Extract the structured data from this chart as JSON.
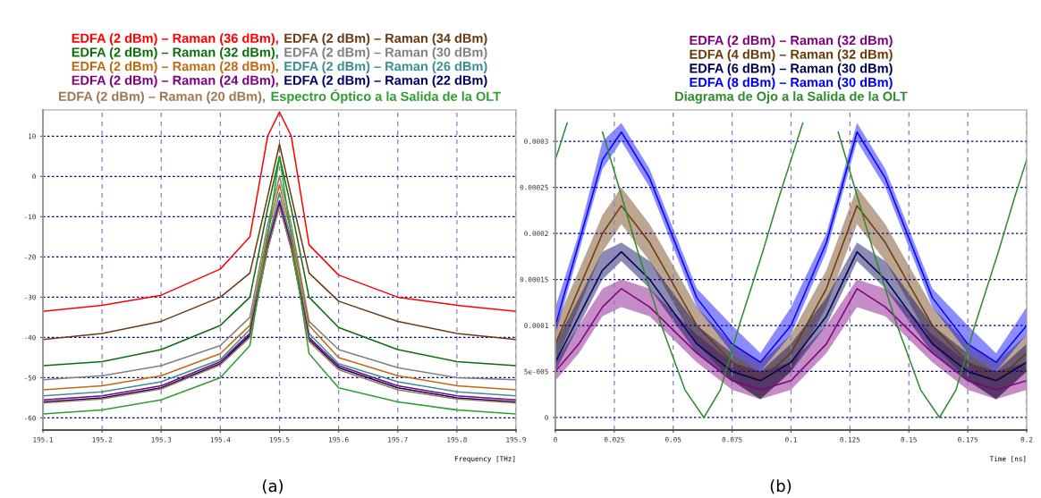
{
  "chart_data": [
    {
      "type": "line",
      "xlabel": "Frequency [THz]",
      "annotations": [
        "(a)"
      ],
      "legend": "top",
      "grid": true,
      "x": [
        195.1,
        195.2,
        195.3,
        195.4,
        195.45,
        195.48,
        195.5,
        195.52,
        195.55,
        195.6,
        195.7,
        195.8,
        195.9
      ],
      "xlim": [
        195.1,
        195.9
      ],
      "xticks": [
        195.1,
        195.2,
        195.3,
        195.4,
        195.5,
        195.6,
        195.7,
        195.8,
        195.9
      ],
      "ylim": [
        -63,
        16.5
      ],
      "yticks": [
        -60,
        -50,
        -40,
        -30,
        -20,
        -10,
        0,
        10
      ],
      "series": [
        {
          "name": "EDFA (2 dBm) – Raman (36 dBm),",
          "color": "#ff0000",
          "values": [
            -33.5,
            -32,
            -29.5,
            -23,
            -15,
            10,
            16,
            10,
            -17,
            -24.5,
            -30,
            -32,
            -33.5
          ]
        },
        {
          "name": "EDFA (2 dBm) – Raman (34 dBm)",
          "color": "#6b3a10",
          "values": [
            -40.5,
            -39,
            -36,
            -30,
            -24,
            -5,
            8,
            -5,
            -24,
            -31,
            -36,
            -39,
            -40.5
          ]
        },
        {
          "name": "EDFA (2 dBm) – Raman (32 dBm),",
          "color": "#0a6e0a",
          "values": [
            -47,
            -46,
            -43,
            -37,
            -30,
            -8,
            5,
            -8,
            -30,
            -37.5,
            -43,
            -46,
            -47
          ]
        },
        {
          "name": "EDFA (2 dBm) – Raman (30 dBm)",
          "color": "#808080",
          "values": [
            -50.5,
            -49.5,
            -47,
            -42,
            -35,
            -12,
            0,
            -12,
            -36,
            -43,
            -47.5,
            -50,
            -50.5
          ]
        },
        {
          "name": "EDFA (2 dBm) – Raman (28 dBm),",
          "color": "#c06a10",
          "values": [
            -53,
            -52,
            -49.5,
            -44,
            -37,
            -14,
            -2,
            -14,
            -37,
            -45,
            -49.5,
            -52,
            -53
          ]
        },
        {
          "name": "EDFA (2 dBm) – Raman (26 dBm)",
          "color": "#3a9090",
          "values": [
            -54.5,
            -53.5,
            -51,
            -45.5,
            -38,
            -16,
            -4,
            -16,
            -39,
            -46.5,
            -51,
            -53.5,
            -54.5
          ]
        },
        {
          "name": "EDFA (2 dBm) – Raman (24 dBm),",
          "color": "#800080",
          "values": [
            -55.5,
            -54.5,
            -52,
            -46,
            -39,
            -17,
            -6,
            -17,
            -40,
            -47,
            -52,
            -54.5,
            -55.5
          ]
        },
        {
          "name": "EDFA (2 dBm) – Raman (22 dBm)",
          "color": "#000066",
          "values": [
            -56,
            -55,
            -52.5,
            -46.5,
            -39.5,
            -18,
            -7,
            -18,
            -40.5,
            -47.5,
            -52.5,
            -55,
            -56
          ]
        },
        {
          "name": "EDFA (2 dBm) – Raman (20 dBm),",
          "color": "#a07850",
          "values": [
            -56.3,
            -55.3,
            -52.8,
            -46.8,
            -40,
            -18,
            -7.5,
            -18,
            -41,
            -48,
            -53,
            -55.3,
            -56.3
          ]
        },
        {
          "name": "Espectro Óptico a la Salida de la OLT",
          "color": "#2e9e2e",
          "values": [
            -59,
            -58,
            -55.5,
            -50,
            -42,
            -15,
            5,
            -15,
            -44,
            -52.5,
            -56,
            -58,
            -59
          ]
        }
      ]
    },
    {
      "type": "line",
      "xlabel": "Time [ns]",
      "annotations": [
        "(b)"
      ],
      "legend": "top",
      "grid": true,
      "x": [
        0,
        0.01,
        0.02,
        0.028,
        0.04,
        0.06,
        0.075,
        0.087,
        0.1,
        0.115,
        0.128,
        0.14,
        0.16,
        0.175,
        0.187,
        0.2
      ],
      "xlim": [
        0,
        0.2
      ],
      "xticks": [
        0,
        0.025,
        0.05,
        0.075,
        0.1,
        0.125,
        0.15,
        0.175,
        0.2
      ],
      "ylim": [
        -1.36e-05,
        0.000334
      ],
      "yticks": [
        0,
        {
          "value": 5e-05,
          "label": "5e-005"
        },
        0.0001,
        0.00015,
        0.0002,
        0.00025,
        0.0003
      ],
      "series": [
        {
          "name": "EDFA (2 dBm) – Raman (32 dBm)",
          "color": "#800080",
          "values": [
            5e-05,
            8e-05,
            0.00012,
            0.00014,
            0.00012,
            7e-05,
            4e-05,
            3e-05,
            4e-05,
            8e-05,
            0.00014,
            0.00012,
            7e-05,
            4e-05,
            3e-05,
            4e-05
          ],
          "lower": [
            4e-05,
            7e-05,
            0.00011,
            0.00012,
            0.00011,
            6e-05,
            3e-05,
            2e-05,
            3e-05,
            7e-05,
            0.00012,
            0.00011,
            6e-05,
            3e-05,
            2e-05,
            3e-05
          ],
          "upper": [
            6e-05,
            0.0001,
            0.00014,
            0.00015,
            0.00014,
            9e-05,
            6e-05,
            5e-05,
            6e-05,
            0.0001,
            0.00015,
            0.00014,
            9e-05,
            6e-05,
            5e-05,
            6e-05
          ]
        },
        {
          "name": "EDFA (4 dBm) – Raman (32 dBm)",
          "color": "#6b3a0a",
          "values": [
            8e-05,
            0.00014,
            0.0002,
            0.00023,
            0.00019,
            0.0001,
            6e-05,
            4e-05,
            7e-05,
            0.00014,
            0.00023,
            0.00019,
            0.0001,
            6e-05,
            4e-05,
            7e-05
          ],
          "lower": [
            6e-05,
            0.00012,
            0.00018,
            0.00021,
            0.00017,
            8e-05,
            4e-05,
            2e-05,
            5e-05,
            0.00012,
            0.00021,
            0.00017,
            8e-05,
            4e-05,
            2e-05,
            5e-05
          ],
          "upper": [
            0.0001,
            0.00016,
            0.00022,
            0.00025,
            0.00021,
            0.00012,
            8e-05,
            6e-05,
            9e-05,
            0.00016,
            0.00025,
            0.00021,
            0.00012,
            8e-05,
            6e-05,
            9e-05
          ]
        },
        {
          "name": "EDFA (6 dBm) – Raman (30 dBm)",
          "color": "#000055",
          "values": [
            6e-05,
            0.00011,
            0.00016,
            0.00018,
            0.00015,
            8e-05,
            5e-05,
            4e-05,
            6e-05,
            0.00011,
            0.00018,
            0.00015,
            8e-05,
            5e-05,
            4e-05,
            6e-05
          ],
          "lower": [
            5e-05,
            0.0001,
            0.00015,
            0.00017,
            0.00014,
            7e-05,
            4e-05,
            2e-05,
            5e-05,
            0.0001,
            0.00017,
            0.00014,
            7e-05,
            4e-05,
            2e-05,
            5e-05
          ],
          "upper": [
            8e-05,
            0.00013,
            0.00018,
            0.00019,
            0.00017,
            0.0001,
            7e-05,
            5e-05,
            8e-05,
            0.00013,
            0.00019,
            0.00017,
            0.0001,
            7e-05,
            5e-05,
            8e-05
          ]
        },
        {
          "name": "EDFA (8 dBm) – Raman (30 dBm)",
          "color": "#0000ff",
          "values": [
            0.0001,
            0.00019,
            0.00028,
            0.00031,
            0.00026,
            0.00013,
            8e-05,
            6e-05,
            0.0001,
            0.00019,
            0.00031,
            0.00026,
            0.00013,
            8e-05,
            6e-05,
            0.0001
          ],
          "lower": [
            9e-05,
            0.00018,
            0.00027,
            0.0003,
            0.00025,
            0.00012,
            7e-05,
            5e-05,
            9e-05,
            0.00018,
            0.0003,
            0.00025,
            0.00012,
            7e-05,
            5e-05,
            9e-05
          ],
          "upper": [
            0.00012,
            0.0002,
            0.0003,
            0.00032,
            0.00027,
            0.00014,
            0.0001,
            7e-05,
            0.00012,
            0.0002,
            0.00032,
            0.00027,
            0.00014,
            0.0001,
            7e-05,
            0.00012
          ]
        },
        {
          "name": "Diagrama de Ojo a la Salida de la OLT",
          "color": "#2e8b2e",
          "x": [
            0,
            0.005,
            0.012,
            0.02,
            0.027,
            0.035,
            0.045,
            0.055,
            0.063,
            0.07,
            0.078,
            0.088,
            0.095,
            0.1,
            0.105,
            0.112,
            0.12,
            0.127,
            0.135,
            0.145,
            0.155,
            0.163,
            0.17,
            0.178,
            0.188,
            0.195,
            0.2
          ],
          "values": [
            0.00028,
            0.00032,
            null,
            0.00031,
            0.00025,
            0.00018,
            0.0001,
            3e-05,
            0,
            3e-05,
            0.0001,
            0.00018,
            0.00024,
            0.00028,
            0.00032,
            null,
            0.00031,
            0.00025,
            0.00018,
            0.0001,
            3e-05,
            0,
            3e-05,
            0.0001,
            0.00018,
            0.00024,
            0.00028
          ]
        }
      ]
    }
  ]
}
